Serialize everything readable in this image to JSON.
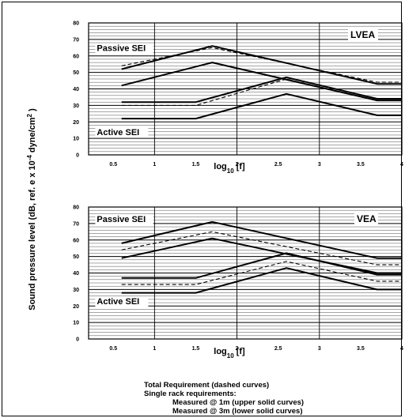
{
  "ylabel": "Sound pressure level (dB, ref. e x 10",
  "ylabel_exp": "-4",
  "ylabel_unit": " dyne/cm",
  "ylabel_unit_exp": "2",
  "ylabel_close": " )",
  "legend": {
    "line1": "Total Requirement (dashed curves)",
    "line2": "Single rack requirements:",
    "line3": "Measured @ 1m (upper solid curves)",
    "line4": "Measured @ 3m (lower solid curves)"
  },
  "chart_data": [
    {
      "type": "line",
      "panel_label": "LVEA",
      "xlabel_main": "log",
      "xlabel_sub": "10",
      "xlabel_arg": " [f]",
      "xticks": [
        "0.5",
        "1",
        "1.5",
        "2",
        "2.5",
        "3",
        "3.5",
        "4"
      ],
      "yticks": [
        "0",
        "10",
        "20",
        "30",
        "40",
        "50",
        "60",
        "70",
        "80"
      ],
      "xlim": [
        0.2,
        4.0
      ],
      "ylim": [
        0,
        80
      ],
      "grid": true,
      "annotations": [
        {
          "text": "Passive SEI",
          "x": 0.3,
          "y": 63
        },
        {
          "text": "Active SEI",
          "x": 0.3,
          "y": 12
        }
      ],
      "series": [
        {
          "style": "solid",
          "x": [
            0.6,
            1.7,
            3.7,
            4.0
          ],
          "y": [
            52,
            66,
            43,
            43
          ]
        },
        {
          "style": "dashed",
          "x": [
            0.6,
            1.7,
            3.7,
            4.0
          ],
          "y": [
            54,
            65,
            44,
            44
          ]
        },
        {
          "style": "solid",
          "x": [
            0.6,
            1.7,
            3.7,
            4.0
          ],
          "y": [
            42,
            56,
            33,
            33
          ]
        },
        {
          "style": "solid",
          "x": [
            0.6,
            1.5,
            2.6,
            3.7,
            4.0
          ],
          "y": [
            32,
            32,
            47,
            34,
            34
          ]
        },
        {
          "style": "dashed",
          "x": [
            0.6,
            1.5,
            2.6,
            3.7,
            4.0
          ],
          "y": [
            30,
            30,
            46,
            33,
            33
          ]
        },
        {
          "style": "solid",
          "x": [
            0.6,
            1.5,
            2.6,
            3.7,
            4.0
          ],
          "y": [
            22,
            22,
            37,
            24,
            24
          ]
        }
      ]
    },
    {
      "type": "line",
      "panel_label": "VEA",
      "xlabel_main": "log",
      "xlabel_sub": "10",
      "xlabel_arg": " [f]",
      "xticks": [
        "0.5",
        "1",
        "1.5",
        "2",
        "2.5",
        "3",
        "3.5",
        "4"
      ],
      "yticks": [
        "0",
        "10",
        "20",
        "30",
        "40",
        "50",
        "60",
        "70",
        "80"
      ],
      "xlim": [
        0.2,
        4.0
      ],
      "ylim": [
        0,
        80
      ],
      "grid": true,
      "annotations": [
        {
          "text": "Passive SEI",
          "x": 0.3,
          "y": 71
        },
        {
          "text": "Active SEI",
          "x": 0.3,
          "y": 21
        }
      ],
      "series": [
        {
          "style": "solid",
          "x": [
            0.6,
            1.7,
            3.7,
            4.0
          ],
          "y": [
            58,
            71,
            49,
            49
          ]
        },
        {
          "style": "dashed",
          "x": [
            0.6,
            1.7,
            3.7,
            4.0
          ],
          "y": [
            54,
            65,
            45,
            45
          ]
        },
        {
          "style": "solid",
          "x": [
            0.6,
            1.7,
            3.7,
            4.0
          ],
          "y": [
            49,
            61,
            40,
            40
          ]
        },
        {
          "style": "solid",
          "x": [
            0.6,
            1.5,
            2.6,
            3.7,
            4.0
          ],
          "y": [
            37,
            37,
            52,
            39,
            39
          ]
        },
        {
          "style": "dashed",
          "x": [
            0.6,
            1.5,
            2.6,
            3.7,
            4.0
          ],
          "y": [
            33,
            33,
            47,
            35,
            35
          ]
        },
        {
          "style": "solid",
          "x": [
            0.6,
            1.5,
            2.6,
            3.7,
            4.0
          ],
          "y": [
            28,
            28,
            43,
            30,
            30
          ]
        }
      ]
    }
  ]
}
